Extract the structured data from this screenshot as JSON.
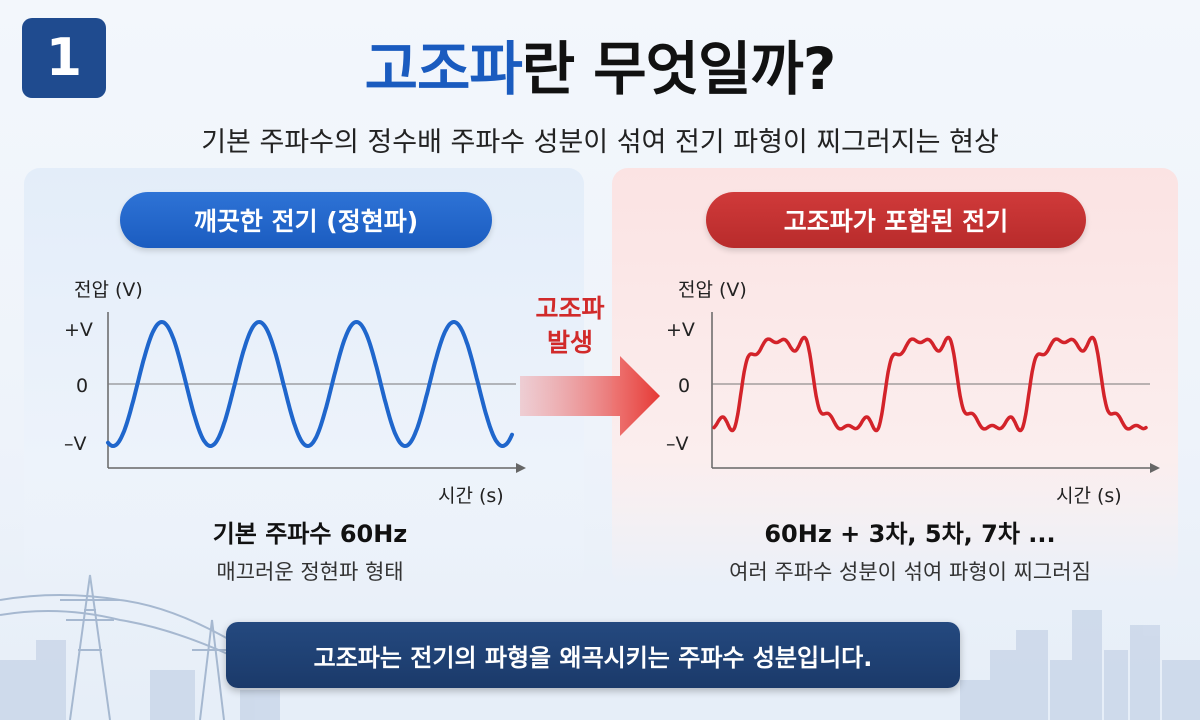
{
  "badge": "1",
  "title": {
    "highlight": "고조파",
    "rest": "란 무엇일까?"
  },
  "subtitle": "기본 주파수의 정수배 주파수 성분이 섞여 전기 파형이 찌그러지는 현상",
  "left_panel": {
    "pill": "깨끗한 전기 (정현파)",
    "ylabel": "전압 (V)",
    "yticks": [
      "+V",
      "0",
      "–V"
    ],
    "xlabel": "시간 (s)",
    "caption_bold": "기본 주파수 60Hz",
    "caption": "매끄러운 정현파 형태",
    "color": "#1f66cc"
  },
  "arrow": {
    "line1": "고조파",
    "line2": "발생",
    "color": "#e53935"
  },
  "right_panel": {
    "pill": "고조파가 포함된 전기",
    "ylabel": "전압 (V)",
    "yticks": [
      "+V",
      "0",
      "–V"
    ],
    "xlabel": "시간 (s)",
    "caption_bold": "60Hz + 3차, 5차, 7차 ...",
    "caption": "여러 주파수 성분이 섞여 파형이 찌그러짐",
    "color": "#d3232a"
  },
  "banner": "고조파는 전기의 파형을 왜곡시키는 주파수 성분입니다."
}
